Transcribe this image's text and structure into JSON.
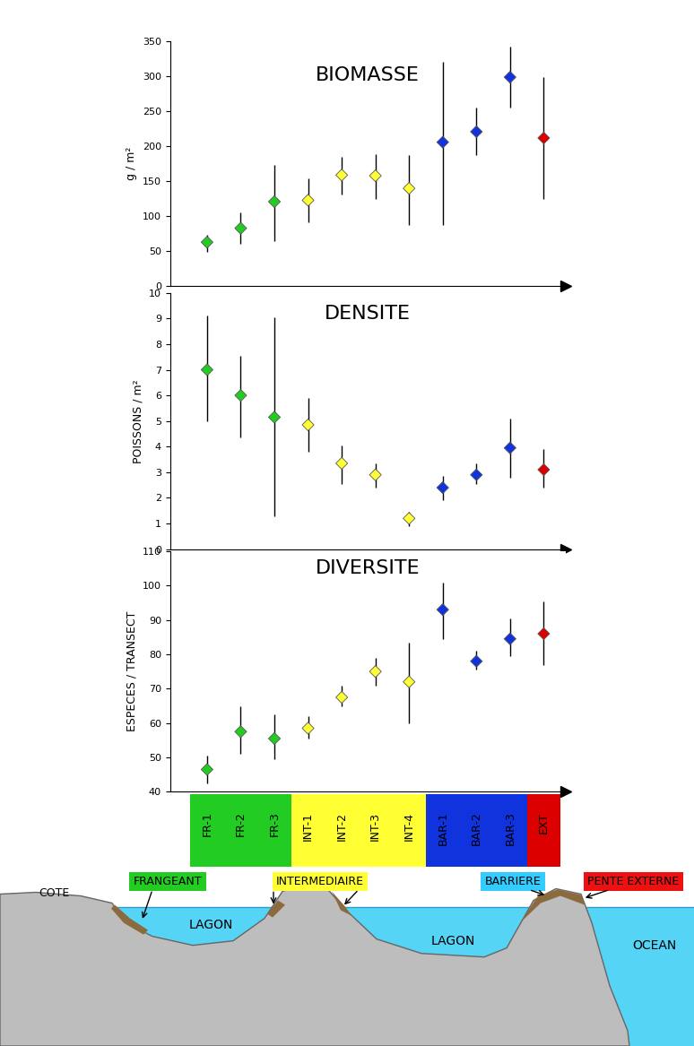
{
  "chart_data": [
    {
      "type": "scatter",
      "title": "BIOMASSE",
      "y_label": "g / m²",
      "categories": [
        "FR-1",
        "FR-2",
        "FR-3",
        "INT-1",
        "INT-2",
        "INT-3",
        "INT-4",
        "BAR-1",
        "BAR-2",
        "BAR-3",
        "EXT"
      ],
      "values": [
        62,
        82,
        120,
        122,
        158,
        157,
        139,
        205,
        220,
        298,
        211
      ],
      "lower": [
        48,
        60,
        63,
        90,
        130,
        124,
        87,
        87,
        186,
        254,
        124
      ],
      "upper": [
        73,
        105,
        173,
        153,
        184,
        188,
        187,
        320,
        255,
        342,
        298
      ],
      "colors": [
        "#22cc22",
        "#22cc22",
        "#22cc22",
        "#ffff33",
        "#ffff33",
        "#ffff33",
        "#ffff33",
        "#1133dd",
        "#1133dd",
        "#1133dd",
        "#dd0000"
      ],
      "marker": "diamond",
      "ylim": [
        0,
        350
      ],
      "yticks": [
        0,
        50,
        100,
        150,
        200,
        250,
        300,
        350
      ],
      "tick_labels": "y"
    },
    {
      "type": "scatter",
      "title": "DENSITE",
      "y_label": "POISSONS / m²",
      "categories": [
        "FR-1",
        "FR-2",
        "FR-3",
        "INT-1",
        "INT-2",
        "INT-3",
        "INT-4",
        "BAR-1",
        "BAR-2",
        "BAR-3",
        "EXT"
      ],
      "values": [
        7,
        6,
        5.15,
        4.85,
        3.35,
        2.9,
        1.2,
        2.4,
        2.9,
        3.95,
        3.1
      ],
      "lower": [
        5,
        4.35,
        1.3,
        3.8,
        2.55,
        2.4,
        0.9,
        1.9,
        2.55,
        2.8,
        2.4
      ],
      "upper": [
        9.1,
        7.55,
        9.05,
        5.9,
        4.05,
        3.35,
        1.45,
        2.85,
        3.35,
        5.1,
        3.9
      ],
      "colors": [
        "#22cc22",
        "#22cc22",
        "#22cc22",
        "#ffff33",
        "#ffff33",
        "#ffff33",
        "#ffff33",
        "#1133dd",
        "#1133dd",
        "#1133dd",
        "#dd0000"
      ],
      "marker": "diamond",
      "ylim": [
        0,
        10
      ],
      "yticks": [
        0,
        1,
        2,
        3,
        4,
        5,
        6,
        7,
        8,
        9,
        10
      ],
      "tick_labels": "y"
    },
    {
      "type": "scatter",
      "title": "DIVERSITE",
      "y_label": "ESPECES / TRANSECT",
      "categories": [
        "FR-1",
        "FR-2",
        "FR-3",
        "INT-1",
        "INT-2",
        "INT-3",
        "INT-4",
        "BAR-1",
        "BAR-2",
        "BAR-3",
        "EXT"
      ],
      "values": [
        46.5,
        57.5,
        55.5,
        58.5,
        67.5,
        75,
        72,
        93,
        78,
        84.5,
        86
      ],
      "lower": [
        42.5,
        51,
        49.5,
        55.5,
        65,
        71,
        60,
        84.5,
        75.5,
        79.5,
        77
      ],
      "upper": [
        50.5,
        65,
        62.5,
        62,
        71,
        79,
        83.5,
        101,
        81,
        90.5,
        95.5
      ],
      "colors": [
        "#22cc22",
        "#22cc22",
        "#22cc22",
        "#ffff33",
        "#ffff33",
        "#ffff33",
        "#ffff33",
        "#1133dd",
        "#1133dd",
        "#1133dd",
        "#dd0000"
      ],
      "marker": "diamond",
      "ylim": [
        40,
        110
      ],
      "yticks": [
        40,
        50,
        60,
        70,
        80,
        90,
        100,
        110
      ]
    }
  ],
  "diagram": {
    "zone_labels": [
      {
        "text": "FRANGEANT",
        "color": "#22cc22"
      },
      {
        "text": "INTERMEDIAIRE",
        "color": "#ffff33"
      },
      {
        "text": "BARRIERE",
        "color": "#33ccff"
      },
      {
        "text": "PENTE EXTERNE",
        "color": "#ee1111"
      }
    ],
    "place_labels": [
      "COTE",
      "LAGON",
      "LAGON",
      "OCEAN"
    ]
  }
}
